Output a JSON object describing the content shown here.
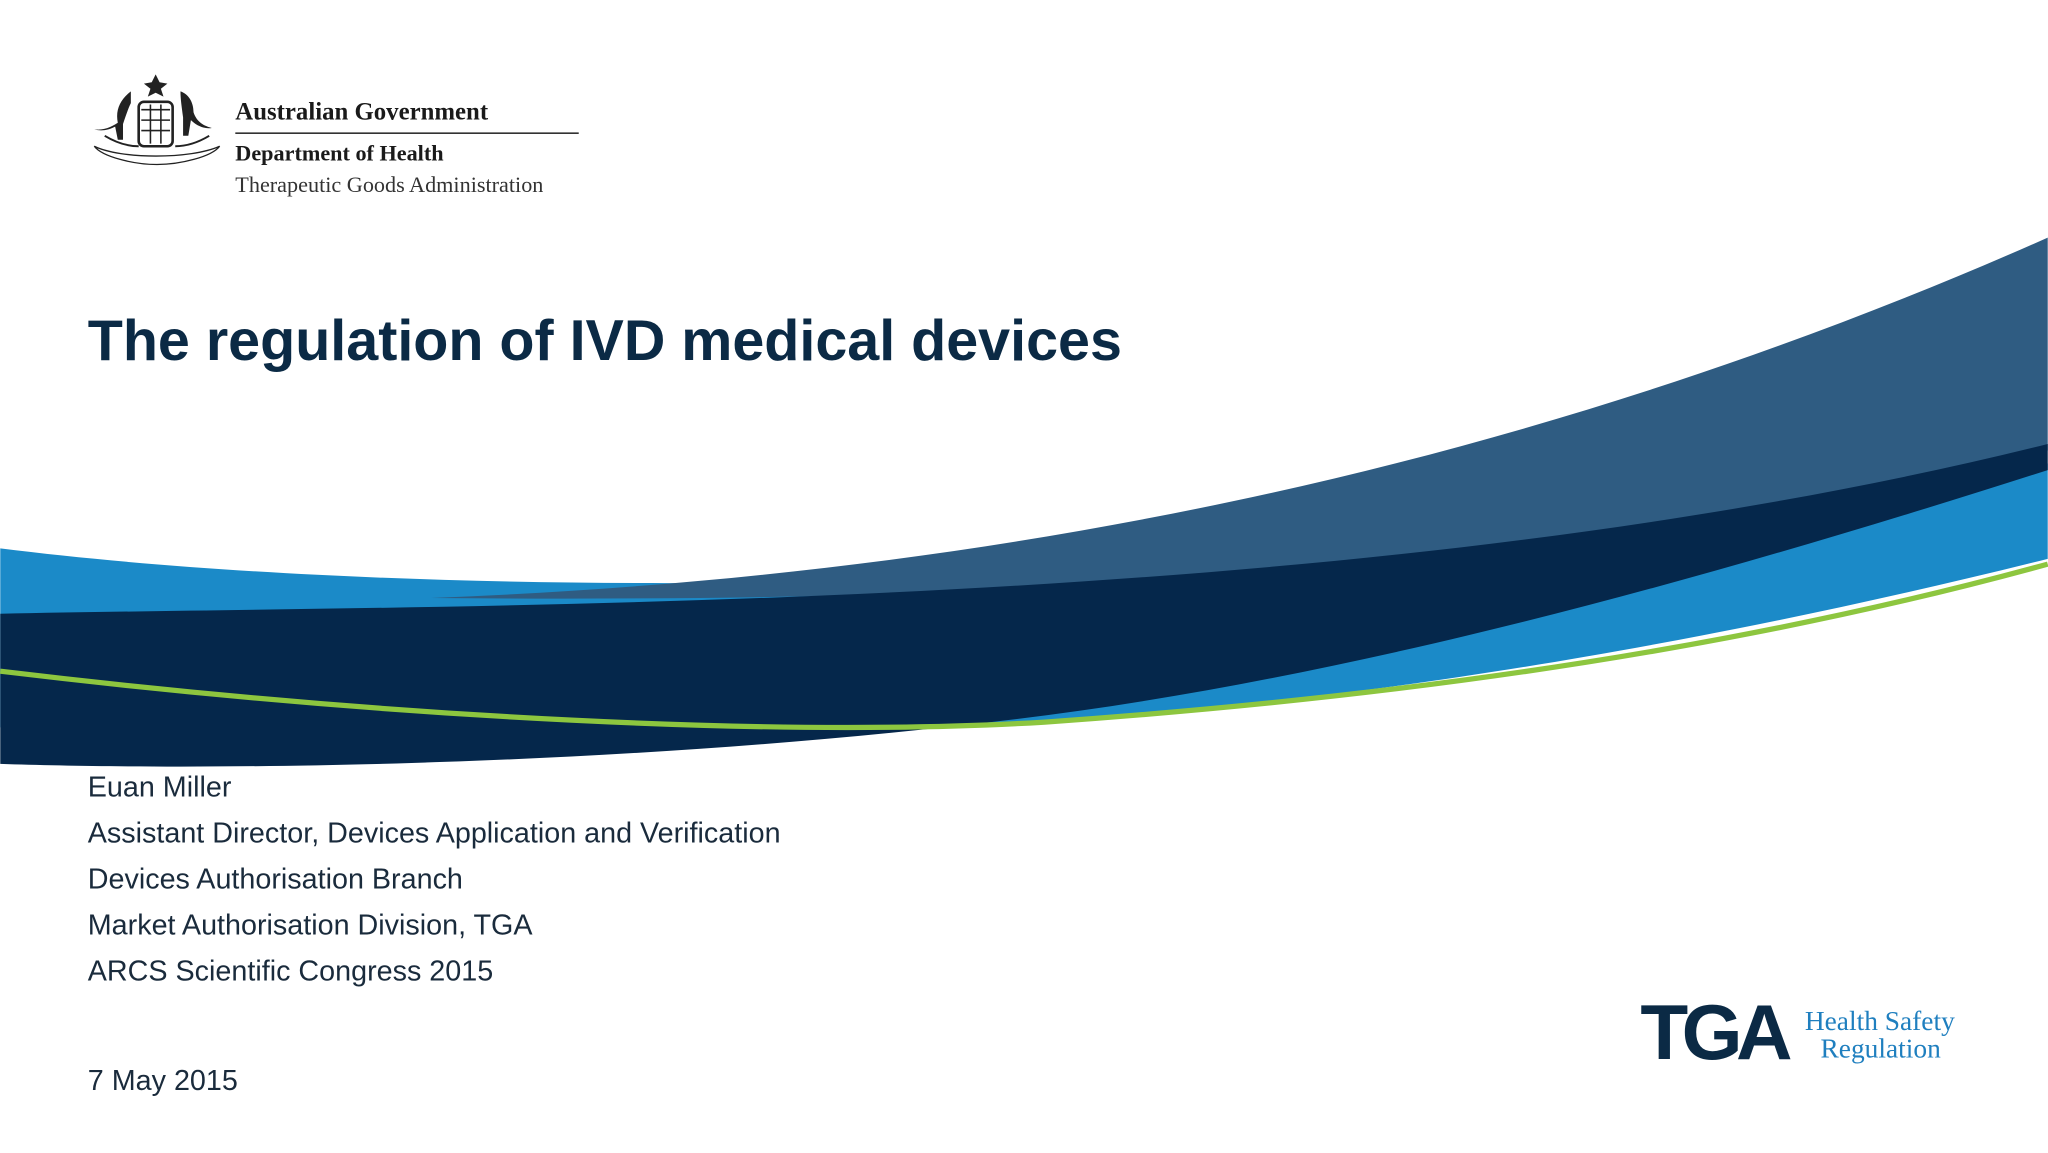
{
  "header": {
    "government": "Australian Government",
    "department": "Department of Health",
    "agency": "Therapeutic Goods Administration"
  },
  "title": "The regulation of IVD medical devices",
  "presenter": {
    "lines": [
      "Euan Miller",
      "Assistant Director, Devices Application and Verification",
      "Devices Authorisation Branch",
      "Market Authorisation Division, TGA",
      "ARCS Scientific Congress 2015"
    ]
  },
  "date": "7 May 2015",
  "logo": {
    "mark": "TGA",
    "tagline_1": "Health Safety",
    "tagline_2": "Regulation"
  }
}
